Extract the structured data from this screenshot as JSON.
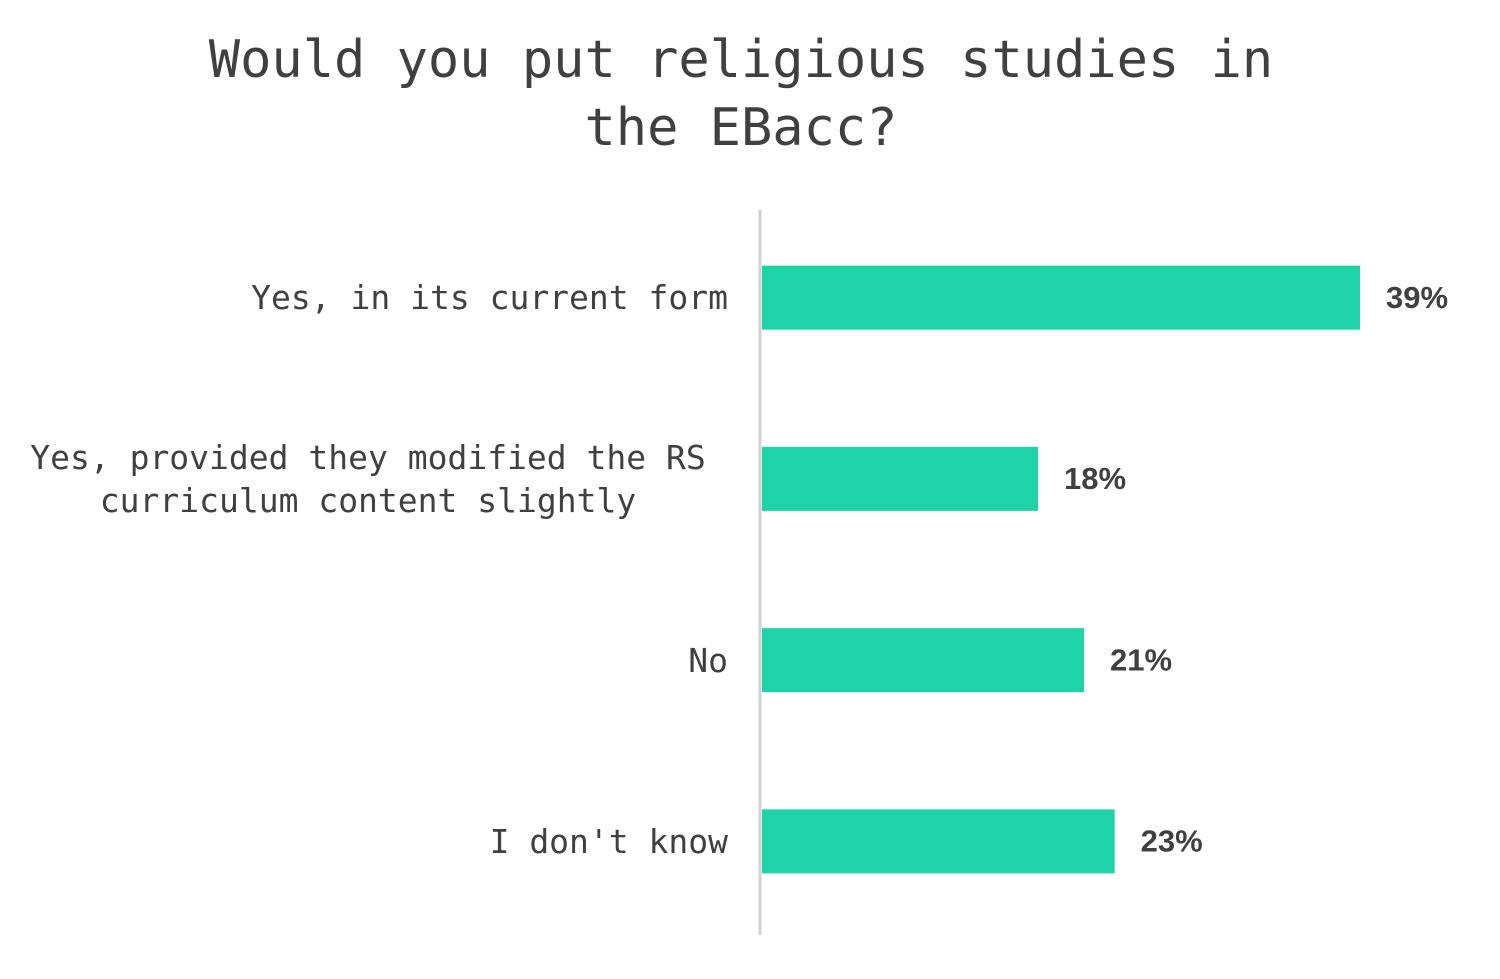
{
  "chart_data": {
    "type": "bar",
    "orientation": "horizontal",
    "title": "Would you put religious studies in the EBacc?",
    "categories": [
      "Yes, in its current form",
      "Yes, provided they modified the RS curriculum content slightly",
      "No",
      "I don't know"
    ],
    "values": [
      39,
      18,
      21,
      23
    ],
    "value_labels": [
      "39%",
      "18%",
      "21%",
      "23%"
    ],
    "color": "#1ed3a7"
  }
}
